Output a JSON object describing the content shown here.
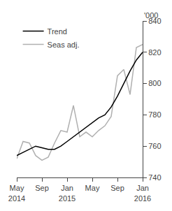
{
  "chart_data": {
    "type": "line",
    "categories": [
      "May\n2014",
      null,
      null,
      null,
      "Sep",
      null,
      null,
      null,
      "Jan\n2015",
      null,
      null,
      null,
      "May",
      null,
      null,
      null,
      "Sep",
      null,
      null,
      null,
      "Jan\n2016"
    ],
    "series": [
      {
        "name": "Seas adj.",
        "color": "#b0b0b0",
        "values": [
          752,
          763,
          762,
          754,
          751,
          753,
          762,
          770,
          769,
          786,
          766,
          769,
          766,
          770,
          773,
          779,
          805,
          809,
          793,
          823,
          825
        ]
      },
      {
        "name": "Trend",
        "color": "#000000",
        "values": [
          754,
          756,
          758,
          760,
          759,
          758,
          758,
          760,
          763,
          766,
          769,
          772,
          775,
          778,
          780,
          785,
          792,
          800,
          808,
          815,
          820
        ]
      }
    ],
    "ylim": [
      740,
      840
    ],
    "yticks": [
      740,
      760,
      780,
      800,
      820,
      840
    ],
    "annotations": [
      "'000"
    ],
    "legend": "upper left",
    "grid": false
  }
}
